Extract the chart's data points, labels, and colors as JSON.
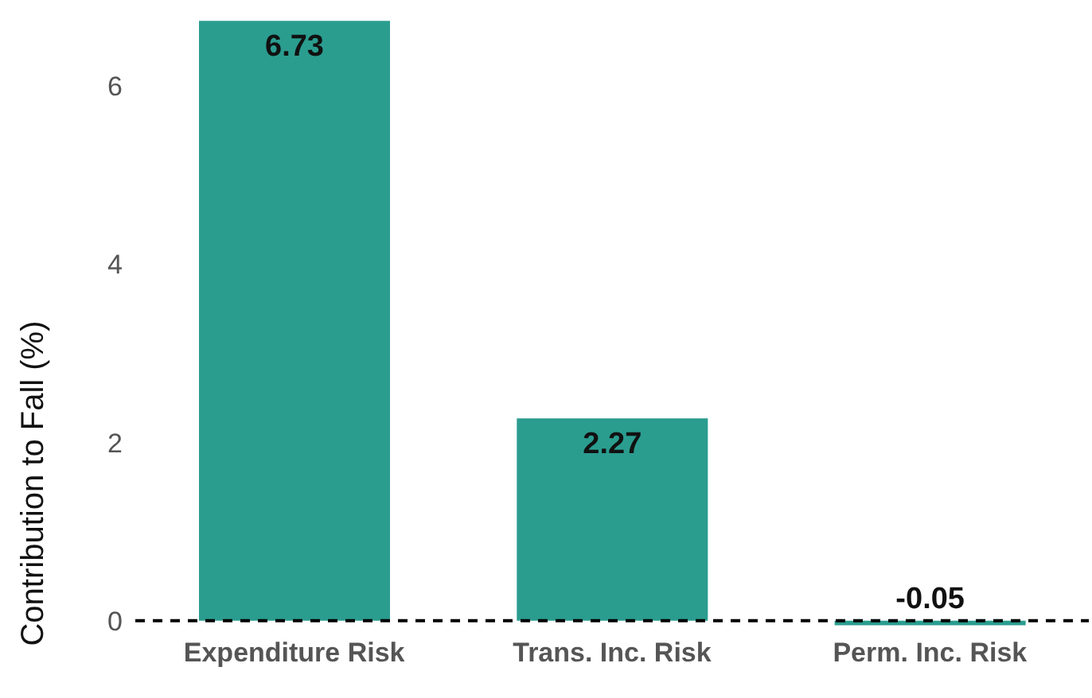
{
  "chart_data": {
    "type": "bar",
    "ylabel": "Contribution to Fall (%)",
    "categories": [
      "Expenditure Risk",
      "Trans. Inc. Risk",
      "Perm. Inc. Risk"
    ],
    "values": [
      6.73,
      2.27,
      -0.05
    ],
    "color": "#2a9d8f",
    "ylim": [
      -0.1,
      6.75
    ],
    "yticks": [
      0,
      2,
      4,
      6
    ],
    "grid": false,
    "data_labels": true,
    "ref_lines": [
      {
        "axis": "y",
        "value": 0,
        "label": null,
        "color": "#000000",
        "line_style": "dashed"
      }
    ]
  }
}
